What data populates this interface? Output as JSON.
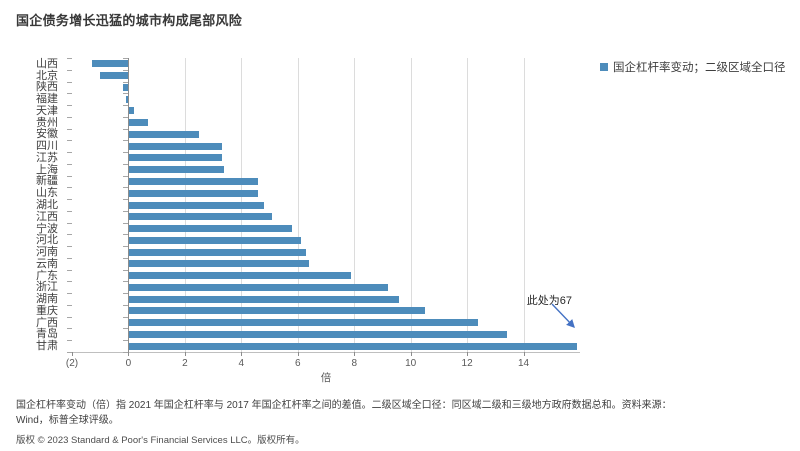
{
  "title": "国企债务增长迅猛的城市构成尾部风险",
  "legend": {
    "marker_color": "#4D8CBB",
    "label": "国企杠杆率变动；二级区域全口径"
  },
  "annotation": {
    "text": "此处为67",
    "arrow_color": "#4472C4"
  },
  "chart_data": {
    "type": "bar",
    "orientation": "horizontal",
    "title": "国企债务增长迅猛的城市构成尾部风险",
    "categories": [
      "山西",
      "北京",
      "陕西",
      "福建",
      "天津",
      "贵州",
      "安徽",
      "四川",
      "江苏",
      "上海",
      "新疆",
      "山东",
      "湖北",
      "江西",
      "宁波",
      "河北",
      "河南",
      "云南",
      "广东",
      "浙江",
      "湖南",
      "重庆",
      "广西",
      "青岛",
      "甘肃"
    ],
    "values": [
      -1.3,
      -1.0,
      -0.2,
      -0.1,
      0.2,
      0.7,
      2.5,
      3.3,
      3.3,
      3.4,
      4.6,
      4.6,
      4.8,
      5.1,
      5.8,
      6.1,
      6.3,
      6.4,
      7.9,
      9.2,
      9.6,
      10.5,
      12.4,
      13.4,
      67
    ],
    "truncated": {
      "category": "甘肃",
      "actual_value": 67,
      "display_cutoff": 15.9,
      "note": "此处为67"
    },
    "xlabel": "倍",
    "ylabel": "",
    "x_ticks": [
      "(2)",
      "0",
      "2",
      "4",
      "6",
      "8",
      "10",
      "12",
      "14"
    ],
    "x_tick_values": [
      -2,
      0,
      2,
      4,
      6,
      8,
      10,
      12,
      14
    ],
    "xlim": [
      -2,
      16
    ],
    "grid": "vertical-light-gray",
    "legend_position": "top-right",
    "legend_entries": [
      "国企杠杆率变动；二级区域全口径"
    ],
    "bar_color": "#4D8CBB"
  },
  "footnotes": {
    "line1": "国企杠杆率变动（倍）指 2021 年国企杠杆率与 2017 年国企杠杆率之间的差值。二级区域全口径：同区域二级和三级地方政府数据总和。资料来源：",
    "line2": "Wind，标普全球评级。",
    "copyright": "版权 © 2023 Standard & Poor's Financial Services LLC。版权所有。"
  }
}
